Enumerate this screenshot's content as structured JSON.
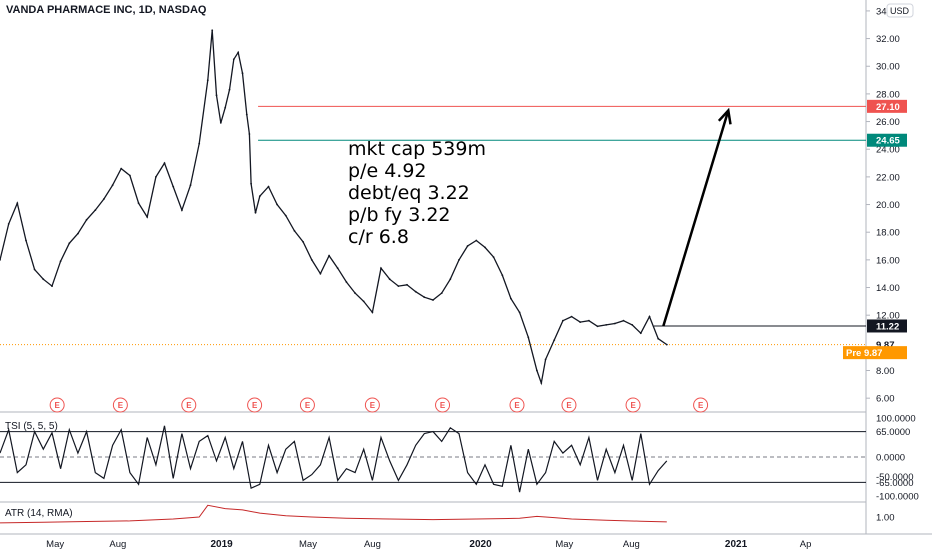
{
  "header": {
    "title": "VANDA PHARMACE INC, 1D, NASDAQ",
    "currency": "USD"
  },
  "colors": {
    "price": "#131722",
    "resistance": "#ef5350",
    "support": "#00897b",
    "current": "#131722",
    "prev_close": "#ff9800",
    "premarket": "#ff9800",
    "atr": "#c62828",
    "earnings": "#ef5350",
    "grid": "#e0e3eb",
    "arrow": "#000000"
  },
  "notes": [
    "mkt cap 539m",
    "p/e 4.92",
    "debt/eq 3.22",
    "p/b fy 3.22",
    "c/r 6.8"
  ],
  "chart_data": [
    {
      "type": "line",
      "pane": "price",
      "y_ticks": [
        "34",
        "32.00",
        "30.00",
        "28.00",
        "26.00",
        "24.00",
        "22.00",
        "20.00",
        "18.00",
        "16.00",
        "14.00",
        "12.00",
        "8.00",
        "6.00"
      ],
      "ylim": [
        5,
        34.5
      ],
      "horizontal_lines": [
        {
          "value": 27.1,
          "label": "27.10",
          "color": "#ef5350"
        },
        {
          "value": 24.65,
          "label": "24.65",
          "color": "#00897b"
        },
        {
          "value": 11.22,
          "label": "11.22",
          "color": "#131722"
        },
        {
          "value": 9.87,
          "label": "9.87",
          "color": "#ff9800"
        }
      ],
      "premarket": {
        "label": "Pre",
        "value": "9.87"
      },
      "arrow": {
        "from": [
          0.766,
          11.22
        ],
        "to": [
          0.841,
          26.8
        ]
      },
      "series": [
        {
          "values": [
            [
              0.0,
              16.0
            ],
            [
              0.01,
              18.6
            ],
            [
              0.02,
              20.1
            ],
            [
              0.03,
              17.4
            ],
            [
              0.04,
              15.3
            ],
            [
              0.05,
              14.6
            ],
            [
              0.06,
              14.1
            ],
            [
              0.07,
              15.9
            ],
            [
              0.08,
              17.2
            ],
            [
              0.09,
              17.9
            ],
            [
              0.1,
              18.9
            ],
            [
              0.11,
              19.6
            ],
            [
              0.12,
              20.4
            ],
            [
              0.13,
              21.4
            ],
            [
              0.14,
              22.6
            ],
            [
              0.15,
              22.1
            ],
            [
              0.16,
              20.1
            ],
            [
              0.17,
              19.1
            ],
            [
              0.18,
              22.0
            ],
            [
              0.19,
              23.0
            ],
            [
              0.2,
              21.3
            ],
            [
              0.21,
              19.6
            ],
            [
              0.22,
              21.4
            ],
            [
              0.23,
              24.4
            ],
            [
              0.24,
              29.0
            ],
            [
              0.245,
              32.6
            ],
            [
              0.25,
              27.9
            ],
            [
              0.255,
              25.9
            ],
            [
              0.26,
              27.0
            ],
            [
              0.265,
              28.3
            ],
            [
              0.27,
              30.5
            ],
            [
              0.275,
              31.0
            ],
            [
              0.28,
              29.5
            ],
            [
              0.285,
              26.5
            ],
            [
              0.288,
              25.1
            ],
            [
              0.29,
              21.5
            ],
            [
              0.295,
              19.4
            ],
            [
              0.3,
              20.6
            ],
            [
              0.31,
              21.3
            ],
            [
              0.32,
              20.0
            ],
            [
              0.33,
              19.2
            ],
            [
              0.34,
              18.1
            ],
            [
              0.35,
              17.3
            ],
            [
              0.36,
              16.0
            ],
            [
              0.37,
              15.0
            ],
            [
              0.38,
              16.3
            ],
            [
              0.39,
              15.4
            ],
            [
              0.4,
              14.4
            ],
            [
              0.41,
              13.6
            ],
            [
              0.42,
              13.0
            ],
            [
              0.43,
              12.2
            ],
            [
              0.44,
              15.4
            ],
            [
              0.45,
              14.6
            ],
            [
              0.46,
              14.1
            ],
            [
              0.47,
              14.2
            ],
            [
              0.48,
              13.7
            ],
            [
              0.49,
              13.3
            ],
            [
              0.5,
              13.1
            ],
            [
              0.51,
              13.6
            ],
            [
              0.52,
              14.6
            ],
            [
              0.53,
              16.0
            ],
            [
              0.54,
              17.0
            ],
            [
              0.55,
              17.4
            ],
            [
              0.56,
              16.9
            ],
            [
              0.57,
              16.2
            ],
            [
              0.58,
              14.9
            ],
            [
              0.59,
              13.2
            ],
            [
              0.6,
              12.2
            ],
            [
              0.61,
              10.4
            ],
            [
              0.62,
              8.0
            ],
            [
              0.625,
              7.1
            ],
            [
              0.63,
              8.8
            ],
            [
              0.64,
              10.2
            ],
            [
              0.65,
              11.6
            ],
            [
              0.66,
              11.9
            ],
            [
              0.67,
              11.5
            ],
            [
              0.68,
              11.6
            ],
            [
              0.69,
              11.2
            ],
            [
              0.7,
              11.3
            ],
            [
              0.71,
              11.4
            ],
            [
              0.72,
              11.6
            ],
            [
              0.73,
              11.3
            ],
            [
              0.74,
              10.7
            ],
            [
              0.75,
              11.9
            ],
            [
              0.76,
              10.3
            ],
            [
              0.77,
              9.87
            ]
          ]
        }
      ]
    },
    {
      "type": "line",
      "pane": "TSI",
      "title": "TSI (5, 5, 5)",
      "y_ticks": [
        "100.0000",
        "65.0000",
        "0.0000",
        "-50.0000",
        "-65.0000",
        "-100.0000"
      ],
      "ylim": [
        -100,
        100
      ],
      "series": [
        {
          "values": [
            [
              0.0,
              10
            ],
            [
              0.01,
              70
            ],
            [
              0.02,
              -40
            ],
            [
              0.03,
              -20
            ],
            [
              0.04,
              65
            ],
            [
              0.05,
              20
            ],
            [
              0.06,
              62
            ],
            [
              0.07,
              -30
            ],
            [
              0.08,
              70
            ],
            [
              0.09,
              10
            ],
            [
              0.1,
              65
            ],
            [
              0.11,
              -40
            ],
            [
              0.12,
              -55
            ],
            [
              0.13,
              30
            ],
            [
              0.14,
              70
            ],
            [
              0.15,
              -40
            ],
            [
              0.16,
              -70
            ],
            [
              0.17,
              50
            ],
            [
              0.18,
              -20
            ],
            [
              0.19,
              80
            ],
            [
              0.2,
              -55
            ],
            [
              0.21,
              60
            ],
            [
              0.22,
              -30
            ],
            [
              0.23,
              40
            ],
            [
              0.24,
              55
            ],
            [
              0.25,
              -10
            ],
            [
              0.26,
              50
            ],
            [
              0.27,
              -30
            ],
            [
              0.28,
              40
            ],
            [
              0.29,
              -80
            ],
            [
              0.3,
              -70
            ],
            [
              0.31,
              30
            ],
            [
              0.32,
              -40
            ],
            [
              0.33,
              20
            ],
            [
              0.34,
              40
            ],
            [
              0.35,
              -60
            ],
            [
              0.36,
              -45
            ],
            [
              0.37,
              -20
            ],
            [
              0.38,
              50
            ],
            [
              0.39,
              -60
            ],
            [
              0.4,
              -30
            ],
            [
              0.41,
              -40
            ],
            [
              0.42,
              20
            ],
            [
              0.43,
              -60
            ],
            [
              0.44,
              50
            ],
            [
              0.45,
              -10
            ],
            [
              0.46,
              -60
            ],
            [
              0.47,
              -20
            ],
            [
              0.48,
              30
            ],
            [
              0.49,
              60
            ],
            [
              0.5,
              65
            ],
            [
              0.51,
              40
            ],
            [
              0.52,
              75
            ],
            [
              0.53,
              60
            ],
            [
              0.54,
              -40
            ],
            [
              0.55,
              -70
            ],
            [
              0.56,
              -20
            ],
            [
              0.57,
              -70
            ],
            [
              0.58,
              -75
            ],
            [
              0.59,
              30
            ],
            [
              0.6,
              -90
            ],
            [
              0.61,
              20
            ],
            [
              0.62,
              -70
            ],
            [
              0.63,
              -40
            ],
            [
              0.64,
              40
            ],
            [
              0.65,
              10
            ],
            [
              0.66,
              30
            ],
            [
              0.67,
              -20
            ],
            [
              0.68,
              50
            ],
            [
              0.69,
              -60
            ],
            [
              0.7,
              20
            ],
            [
              0.71,
              -40
            ],
            [
              0.72,
              30
            ],
            [
              0.73,
              -60
            ],
            [
              0.74,
              60
            ],
            [
              0.75,
              -70
            ],
            [
              0.76,
              -35
            ],
            [
              0.77,
              -10
            ]
          ]
        }
      ]
    },
    {
      "type": "area",
      "pane": "ATR",
      "title": "ATR (14, RMA)",
      "y_ticks": [
        "1.00"
      ],
      "ylim": [
        0,
        2
      ],
      "series": [
        {
          "values": [
            [
              0.0,
              0.55
            ],
            [
              0.05,
              0.6
            ],
            [
              0.1,
              0.65
            ],
            [
              0.15,
              0.7
            ],
            [
              0.2,
              0.85
            ],
            [
              0.23,
              1.0
            ],
            [
              0.24,
              1.9
            ],
            [
              0.26,
              1.65
            ],
            [
              0.28,
              1.55
            ],
            [
              0.3,
              1.3
            ],
            [
              0.33,
              1.1
            ],
            [
              0.36,
              1.0
            ],
            [
              0.4,
              0.9
            ],
            [
              0.45,
              0.85
            ],
            [
              0.5,
              0.8
            ],
            [
              0.55,
              0.85
            ],
            [
              0.6,
              0.9
            ],
            [
              0.62,
              1.05
            ],
            [
              0.64,
              0.95
            ],
            [
              0.66,
              0.85
            ],
            [
              0.7,
              0.75
            ],
            [
              0.74,
              0.68
            ],
            [
              0.77,
              0.62
            ]
          ]
        }
      ]
    }
  ],
  "earnings_markers": {
    "label": "E",
    "x": [
      0.066,
      0.139,
      0.218,
      0.294,
      0.355,
      0.43,
      0.511,
      0.597,
      0.657,
      0.731,
      0.809
    ]
  },
  "x_axis": {
    "labels": [
      {
        "text": "May",
        "x": 0.063,
        "bold": false
      },
      {
        "text": "Aug",
        "x": 0.136,
        "bold": false
      },
      {
        "text": "2019",
        "x": 0.256,
        "bold": true
      },
      {
        "text": "May",
        "x": 0.355,
        "bold": false
      },
      {
        "text": "Aug",
        "x": 0.43,
        "bold": false
      },
      {
        "text": "2020",
        "x": 0.555,
        "bold": true
      },
      {
        "text": "May",
        "x": 0.651,
        "bold": false
      },
      {
        "text": "Aug",
        "x": 0.729,
        "bold": false
      },
      {
        "text": "2021",
        "x": 0.85,
        "bold": true
      },
      {
        "text": "Ap",
        "x": 0.93,
        "bold": false
      }
    ]
  }
}
